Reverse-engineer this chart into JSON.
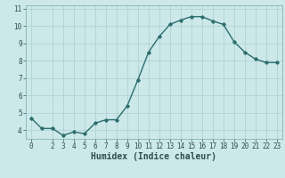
{
  "x": [
    0,
    1,
    2,
    3,
    4,
    5,
    6,
    7,
    8,
    9,
    10,
    11,
    12,
    13,
    14,
    15,
    16,
    17,
    18,
    19,
    20,
    21,
    22,
    23
  ],
  "y": [
    4.7,
    4.1,
    4.1,
    3.7,
    3.9,
    3.8,
    4.4,
    4.6,
    4.6,
    5.4,
    6.9,
    8.5,
    9.4,
    10.1,
    10.35,
    10.55,
    10.55,
    10.3,
    10.1,
    9.1,
    8.5,
    8.1,
    7.9,
    7.9
  ],
  "line_color": "#2d6e6e",
  "marker": "D",
  "marker_size": 1.8,
  "linewidth": 1.0,
  "xlabel": "Humidex (Indice chaleur)",
  "xlabel_fontsize": 7,
  "xlim": [
    -0.5,
    23.5
  ],
  "ylim": [
    3.5,
    11.2
  ],
  "yticks": [
    4,
    5,
    6,
    7,
    8,
    9,
    10,
    11
  ],
  "xticks": [
    0,
    2,
    3,
    4,
    5,
    6,
    7,
    8,
    9,
    10,
    11,
    12,
    13,
    14,
    15,
    16,
    17,
    18,
    19,
    20,
    21,
    22,
    23
  ],
  "background_color": "#cce8e8",
  "grid_color": "#aacfcf",
  "tick_fontsize": 5.5
}
